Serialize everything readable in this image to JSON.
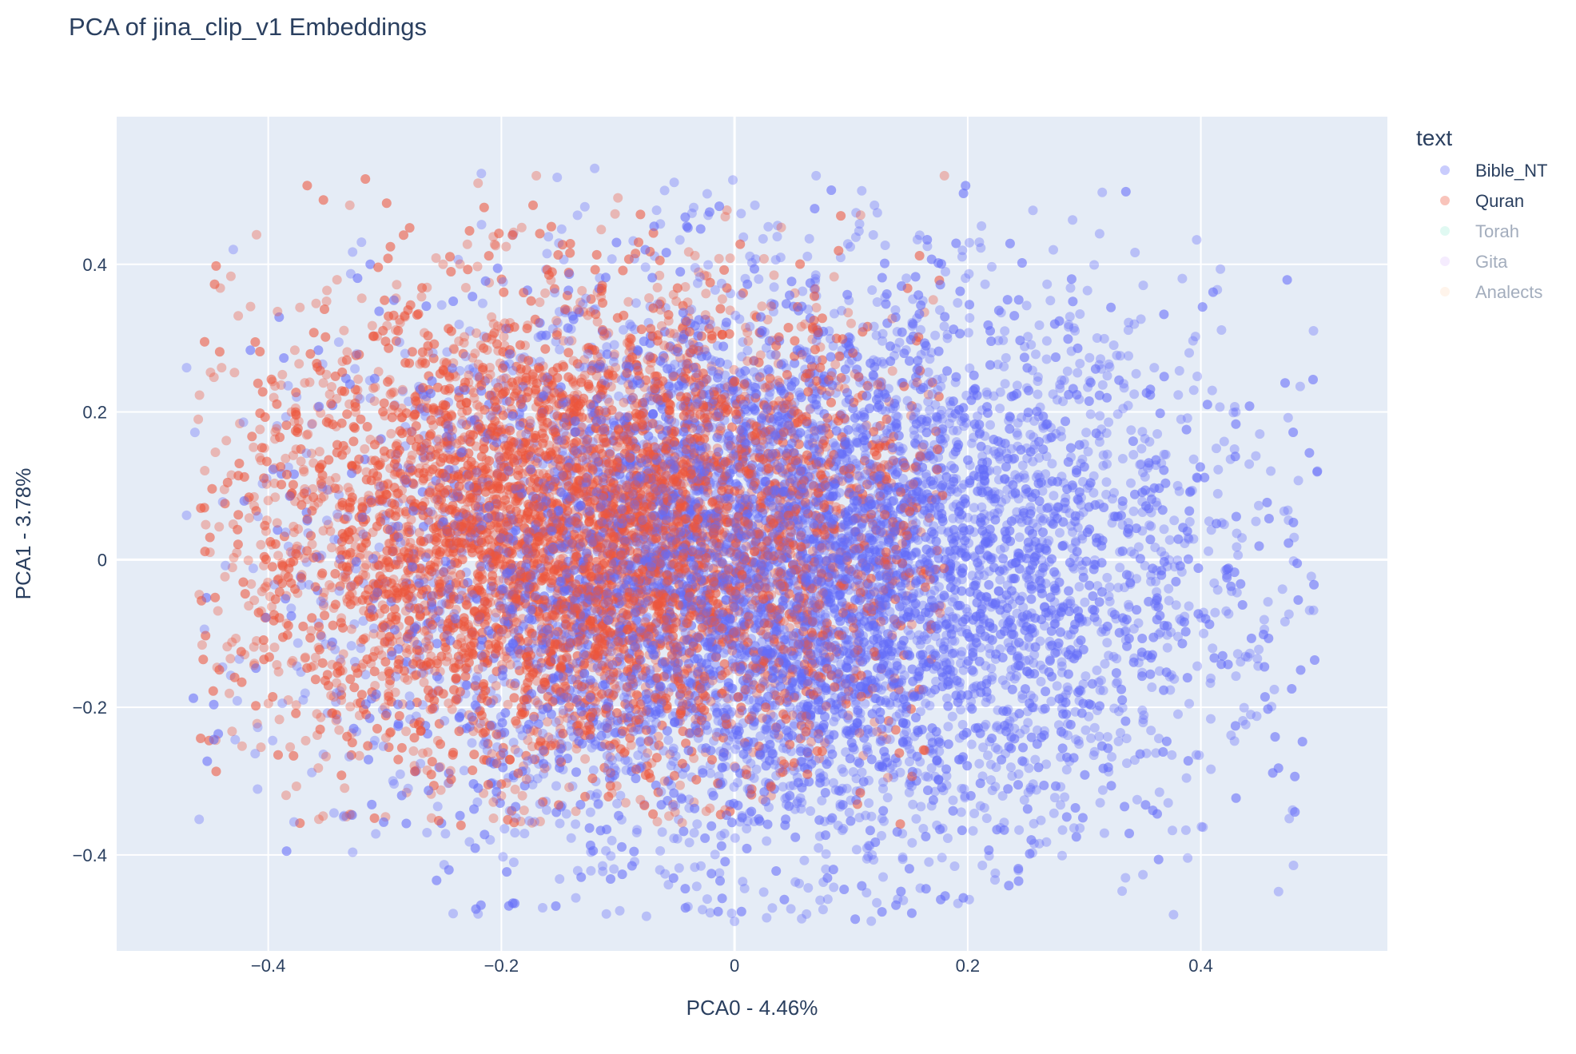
{
  "chart_data": {
    "type": "scatter",
    "title": "PCA of jina_clip_v1 Embeddings",
    "xlabel": "PCA0 - 4.46%",
    "ylabel": "PCA1 - 3.78%",
    "xlim": [
      -0.53,
      0.56
    ],
    "ylim": [
      -0.53,
      0.6
    ],
    "x_ticks": [
      -0.4,
      -0.2,
      0,
      0.2,
      0.4
    ],
    "y_ticks": [
      -0.4,
      -0.2,
      0,
      0.2,
      0.4
    ],
    "x_tick_labels": [
      "−0.4",
      "−0.2",
      "0",
      "0.2",
      "0.4"
    ],
    "y_tick_labels": [
      "−0.4",
      "−0.2",
      "0",
      "0.2",
      "0.4"
    ],
    "grid": true,
    "plot_background": "#e5ecf6",
    "legend": {
      "title": "text",
      "position": "right",
      "entries": [
        {
          "label": "Bible_NT",
          "color": "#636efa",
          "visible": true
        },
        {
          "label": "Quran",
          "color": "#ef553b",
          "visible": true
        },
        {
          "label": "Torah",
          "color": "#00cc96",
          "visible": false
        },
        {
          "label": "Gita",
          "color": "#ab63fa",
          "visible": false
        },
        {
          "label": "Analects",
          "color": "#ffa15a",
          "visible": false
        }
      ]
    },
    "series": [
      {
        "name": "Bible_NT",
        "color": "#636efa",
        "opacity": 0.35,
        "cluster": {
          "center": [
            0.05,
            -0.02
          ],
          "spread": [
            0.18,
            0.19
          ],
          "range_x": [
            -0.47,
            0.5
          ],
          "range_y": [
            -0.49,
            0.53
          ]
        },
        "sample_points": [
          [
            -0.47,
            0.26
          ],
          [
            -0.47,
            0.06
          ],
          [
            -0.43,
            0.42
          ],
          [
            -0.32,
            0.43
          ],
          [
            -0.12,
            0.53
          ],
          [
            -0.06,
            0.5
          ],
          [
            -0.04,
            -0.47
          ],
          [
            0.0,
            -0.49
          ],
          [
            0.07,
            0.52
          ],
          [
            0.29,
            0.46
          ],
          [
            0.5,
            0.12
          ],
          [
            0.47,
            -0.04
          ],
          [
            0.41,
            -0.12
          ],
          [
            0.36,
            0.26
          ],
          [
            0.39,
            0.28
          ],
          [
            0.21,
            0.43
          ],
          [
            0.12,
            0.48
          ],
          [
            -0.22,
            -0.48
          ],
          [
            -0.11,
            -0.48
          ],
          [
            0.08,
            -0.46
          ],
          [
            0.14,
            -0.46
          ],
          [
            0.23,
            -0.32
          ],
          [
            0.32,
            -0.24
          ],
          [
            0.43,
            0.2
          ],
          [
            0.46,
            0.12
          ],
          [
            0.48,
            0.03
          ],
          [
            0.42,
            0.16
          ],
          [
            -0.19,
            0.44
          ],
          [
            -0.37,
            -0.19
          ],
          [
            -0.28,
            -0.31
          ]
        ]
      },
      {
        "name": "Quran",
        "color": "#ef553b",
        "opacity": 0.35,
        "cluster": {
          "center": [
            -0.13,
            0.03
          ],
          "spread": [
            0.15,
            0.16
          ],
          "range_x": [
            -0.46,
            0.18
          ],
          "range_y": [
            -0.36,
            0.52
          ]
        },
        "sample_points": [
          [
            -0.46,
            0.19
          ],
          [
            -0.45,
            0.01
          ],
          [
            -0.41,
            0.44
          ],
          [
            -0.41,
            -0.11
          ],
          [
            -0.33,
            0.48
          ],
          [
            -0.22,
            0.51
          ],
          [
            -0.17,
            0.52
          ],
          [
            -0.1,
            0.49
          ],
          [
            0.18,
            0.52
          ],
          [
            -0.38,
            -0.14
          ],
          [
            -0.26,
            -0.35
          ],
          [
            -0.2,
            -0.32
          ],
          [
            -0.06,
            -0.3
          ],
          [
            0.0,
            -0.28
          ],
          [
            0.05,
            -0.28
          ],
          [
            0.12,
            -0.22
          ],
          [
            0.1,
            0.32
          ],
          [
            0.04,
            0.45
          ],
          [
            -0.4,
            0.08
          ],
          [
            -0.44,
            0.26
          ],
          [
            -0.35,
            0.35
          ],
          [
            -0.3,
            -0.2
          ],
          [
            -0.15,
            -0.25
          ],
          [
            0.15,
            0.1
          ],
          [
            0.08,
            -0.1
          ],
          [
            -0.05,
            0.35
          ],
          [
            -0.25,
            0.4
          ],
          [
            -0.38,
            0.2
          ]
        ]
      }
    ]
  }
}
